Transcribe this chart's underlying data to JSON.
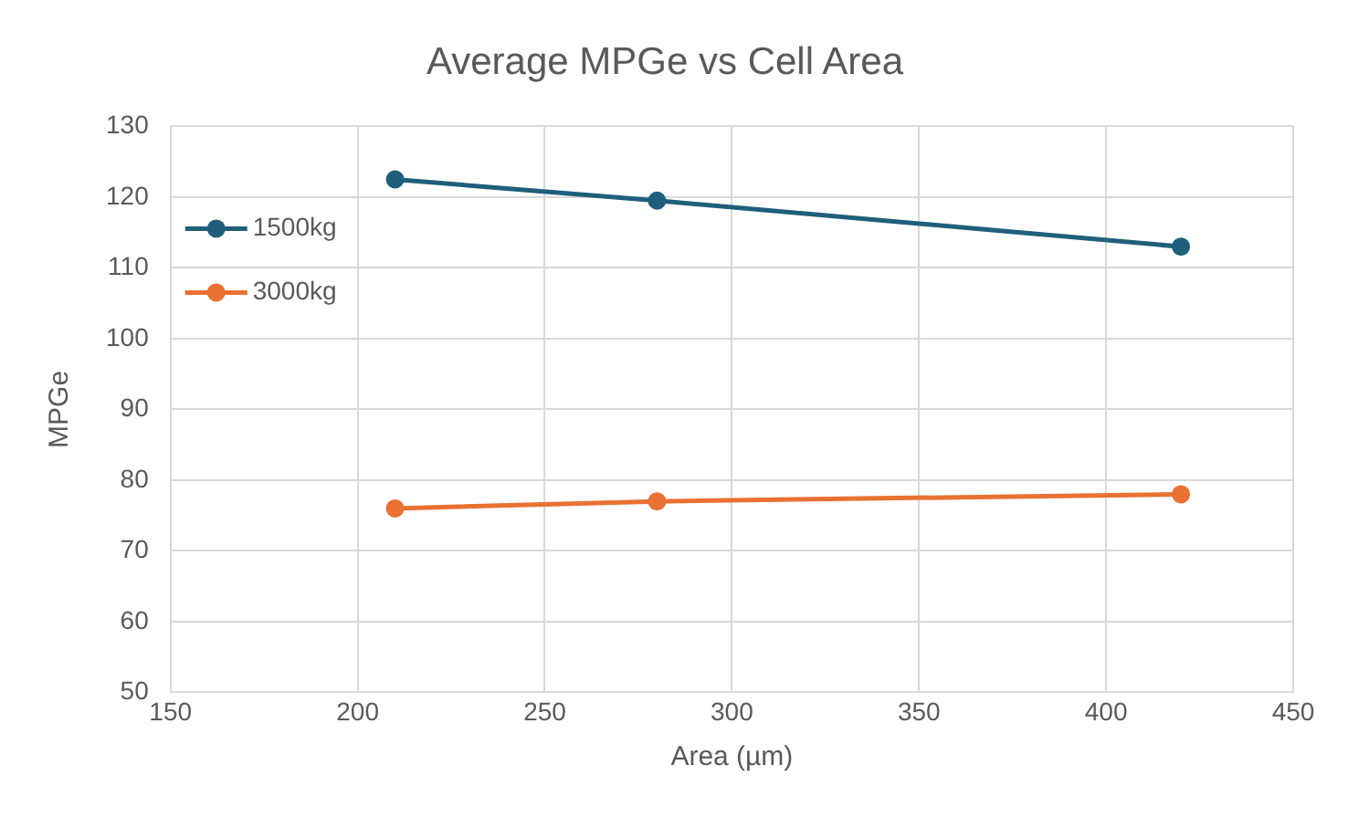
{
  "chart_data": {
    "type": "line",
    "title": "Average MPGe vs Cell Area",
    "xlabel": "Area (µm)",
    "ylabel": "MPGe",
    "x": [
      210,
      280,
      420
    ],
    "series": [
      {
        "name": "1500kg",
        "color": "#1f5f7c",
        "values": [
          122.5,
          119.5,
          113
        ]
      },
      {
        "name": "3000kg",
        "color": "#e97132",
        "values": [
          76,
          77,
          78
        ]
      }
    ],
    "xlim": [
      150,
      450
    ],
    "xticks": [
      150,
      200,
      250,
      300,
      350,
      400,
      450
    ],
    "ylim": [
      50,
      130
    ],
    "yticks": [
      50,
      60,
      70,
      80,
      90,
      100,
      110,
      120,
      130
    ],
    "grid": true,
    "legend": "top left",
    "marker": "circle",
    "line_style": "solid"
  }
}
